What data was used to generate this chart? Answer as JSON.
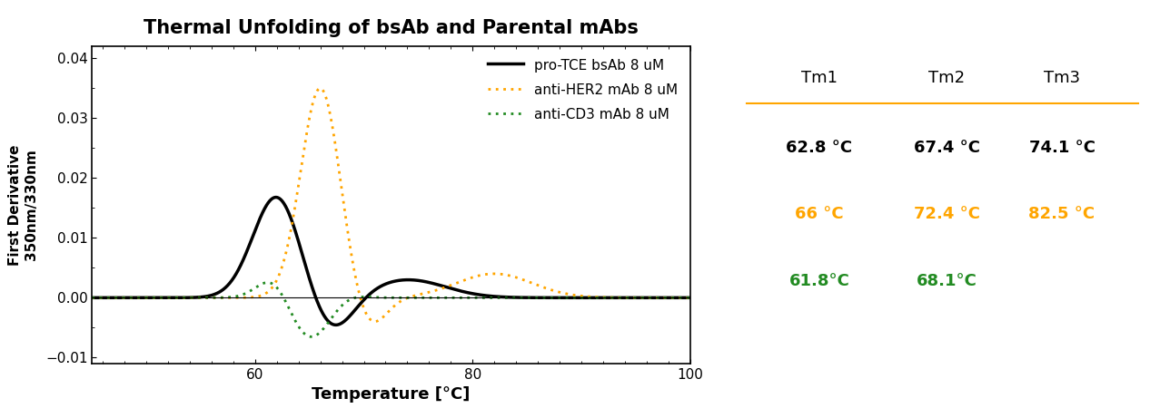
{
  "title": "Thermal Unfolding of bsAb and Parental mAbs",
  "xlabel": "Temperature [°C]",
  "ylabel": "First Derivative\n350nm/330nm",
  "xlim": [
    45,
    100
  ],
  "ylim": [
    -0.011,
    0.042
  ],
  "yticks": [
    -0.01,
    0.0,
    0.01,
    0.02,
    0.03,
    0.04
  ],
  "xticks": [
    60,
    80,
    100
  ],
  "colors": {
    "bsab": "#000000",
    "her2": "#FFA500",
    "cd3": "#228B22"
  },
  "legend_labels": [
    "pro-TCE bsAb 8 uM",
    "anti-HER2 mAb 8 uM",
    "anti-CD3 mAb 8 uM"
  ],
  "table": {
    "headers": [
      "Tm1",
      "Tm2",
      "Tm3"
    ],
    "rows": [
      {
        "label": "bsab",
        "color": "#000000",
        "values": [
          "62.8 °C",
          "67.4 °C",
          "74.1 °C"
        ]
      },
      {
        "label": "her2",
        "color": "#FFA500",
        "values": [
          "66 °C",
          "72.4 °C",
          "82.5 °C"
        ]
      },
      {
        "label": "cd3",
        "color": "#228B22",
        "values": [
          "61.8°C",
          "68.1°C",
          ""
        ]
      }
    ],
    "header_color": "#000000",
    "divider_color": "#FFA500"
  }
}
